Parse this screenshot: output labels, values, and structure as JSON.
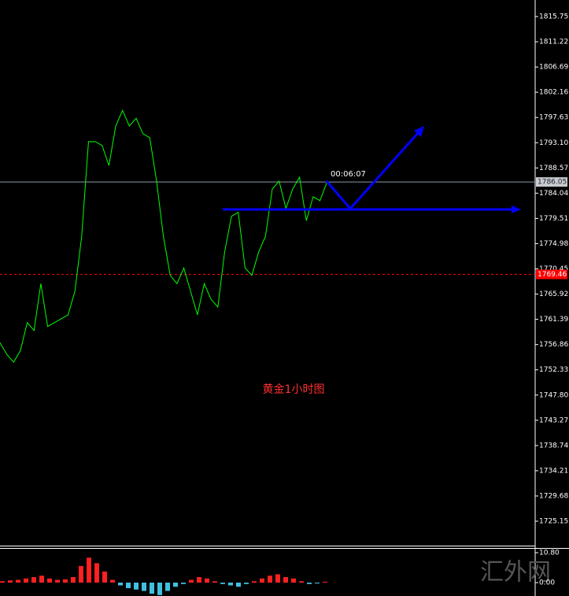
{
  "chart_data": [
    {
      "type": "line",
      "color": "#00ff00",
      "categories": [
        null,
        null,
        null,
        null,
        null,
        null,
        null,
        null,
        null,
        null,
        null,
        null,
        null,
        null,
        null,
        null,
        null,
        null,
        null,
        null,
        null,
        null,
        null,
        null,
        null,
        null,
        null,
        null,
        null,
        null,
        null,
        null,
        null,
        null,
        null,
        null,
        null,
        null,
        null,
        null,
        null,
        null,
        null,
        null,
        null,
        null,
        null,
        null,
        null
      ],
      "values": [
        1757.2,
        1755.1,
        1753.7,
        1755.8,
        1760.8,
        1759.4,
        1767.8,
        1760.1,
        1760.8,
        1761.5,
        1762.2,
        1766.4,
        1776.3,
        1793.3,
        1793.3,
        1792.6,
        1789.0,
        1796.1,
        1798.9,
        1796.1,
        1797.5,
        1794.7,
        1794.0,
        1786.2,
        1776.3,
        1769.3,
        1767.8,
        1770.6,
        1766.4,
        1762.2,
        1767.8,
        1765.0,
        1763.6,
        1773.5,
        1779.9,
        1780.6,
        1770.6,
        1769.3,
        1773.5,
        1776.3,
        1784.8,
        1786.2,
        1781.3,
        1784.8,
        1786.9,
        1779.1,
        1783.4,
        1782.7,
        1785.9
      ],
      "ylim": [
        1720.77,
        1818.72
      ],
      "yticks": [
        1815.75,
        1811.22,
        1806.69,
        1802.16,
        1797.63,
        {
          "value": 1793.1,
          "label": "1793.10"
        },
        1788.57,
        1784.04,
        1779.51,
        1774.98,
        1770.45,
        1765.92,
        1761.39,
        1756.86,
        1752.33,
        {
          "value": 1747.8,
          "label": "1747.80"
        },
        1743.27,
        1738.74,
        1734.21,
        1729.68,
        1725.15
      ],
      "price_lines": [
        {
          "value": 1786.05,
          "color": "#8a9aa8"
        },
        {
          "value": 1769.46,
          "color": "#ff0000"
        }
      ],
      "annotations": [
        "00:06:07",
        "黄金1小时图"
      ]
    },
    {
      "type": "bar",
      "pos_color": "#ff2020",
      "neg_color": "#40c0e0",
      "categories": [
        null,
        null,
        null,
        null,
        null,
        null,
        null,
        null,
        null,
        null,
        null,
        null,
        null,
        null,
        null,
        null,
        null,
        null,
        null,
        null,
        null,
        null,
        null,
        null,
        null,
        null,
        null,
        null,
        null,
        null,
        null,
        null,
        null,
        null,
        null,
        null,
        null,
        null,
        null,
        null,
        null,
        null
      ],
      "values": [
        0.5,
        0.8,
        1.0,
        1.5,
        2,
        2.5,
        1.5,
        1,
        1.2,
        2,
        6,
        9,
        7,
        4,
        1,
        -1,
        -2,
        -2.5,
        -3,
        -4,
        -4.5,
        -3,
        -1.5,
        -0.5,
        1,
        2,
        1.5,
        0.5,
        -0.5,
        -1,
        -1.5,
        -0.5,
        0.5,
        1.5,
        2.5,
        3,
        2,
        1.5,
        0.5,
        -0.5,
        -0.3,
        0.3
      ],
      "ylim": [
        -4.83,
        12.22
      ],
      "yticks": [
        {
          "value": 10.8,
          "label": "10.80"
        },
        {
          "value": 0,
          "label": "0.00"
        }
      ]
    }
  ],
  "watermark": "汇外网"
}
